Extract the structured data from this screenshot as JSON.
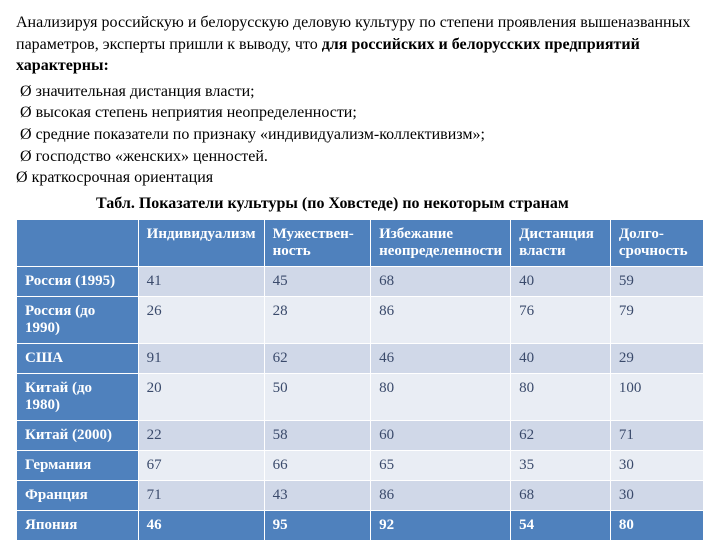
{
  "intro": {
    "prefix": "Анализируя российскую и белорусскую деловую культуру по степени проявления вышеназванных параметров, эксперты пришли к выводу, что ",
    "bold": "для российских и белорусских предприятий характерны:"
  },
  "bullets": [
    {
      "marker": "Ø",
      "text": "значительная дистанция власти;"
    },
    {
      "marker": "Ø",
      "text": "высокая степень неприятия неопределенности;"
    },
    {
      "marker": "Ø",
      "text": "средние показатели по признаку «индивидуализм-коллективизм»;"
    },
    {
      "marker": "Ø",
      "text": "господство «женских» ценностей."
    },
    {
      "marker": "Ø",
      "text": "краткосрочная ориентация"
    }
  ],
  "table": {
    "title": "Табл. Показатели культуры (по Ховстеде) по некоторым странам",
    "columns": [
      {
        "label": "",
        "width": "20%"
      },
      {
        "label": "Индивидуализм",
        "width": "15%"
      },
      {
        "label": "Мужествен-ность",
        "width": "16%"
      },
      {
        "label": "Избежание неопределенности",
        "width": "20%"
      },
      {
        "label": "Дистанция власти",
        "width": "15%"
      },
      {
        "label": "Долго-срочность",
        "width": "14%"
      }
    ],
    "rows": [
      {
        "label": "Россия (1995)",
        "cells": [
          "41",
          "45",
          "68",
          "40",
          "59"
        ]
      },
      {
        "label": "Россия (до 1990)",
        "cells": [
          "26",
          "28",
          "86",
          "76",
          "79"
        ]
      },
      {
        "label": "США",
        "cells": [
          "91",
          "62",
          "46",
          "40",
          "29"
        ]
      },
      {
        "label": "Китай (до 1980)",
        "cells": [
          "20",
          "50",
          "80",
          "80",
          "100"
        ]
      },
      {
        "label": "Китай (2000)",
        "cells": [
          "22",
          "58",
          "60",
          "62",
          "71"
        ]
      },
      {
        "label": "Германия",
        "cells": [
          "67",
          "66",
          "65",
          "35",
          "30"
        ]
      },
      {
        "label": "Франция",
        "cells": [
          "71",
          "43",
          "86",
          "68",
          "30"
        ]
      },
      {
        "label": "Япония",
        "cells": [
          "46",
          "95",
          "92",
          "54",
          "80"
        ]
      }
    ],
    "header_bg": "#4f81bd",
    "header_fg": "#ffffff",
    "row_label_bg": "#4f81bd",
    "row_label_fg": "#ffffff",
    "band_light": "#d0d8e8",
    "band_dark": "#e9edf4",
    "cell_fg_light": "#3a4a6b",
    "cell_fg_dark": "#3a4a6b",
    "last_row_bg": "#4f81bd",
    "last_row_fg": "#ffffff"
  }
}
